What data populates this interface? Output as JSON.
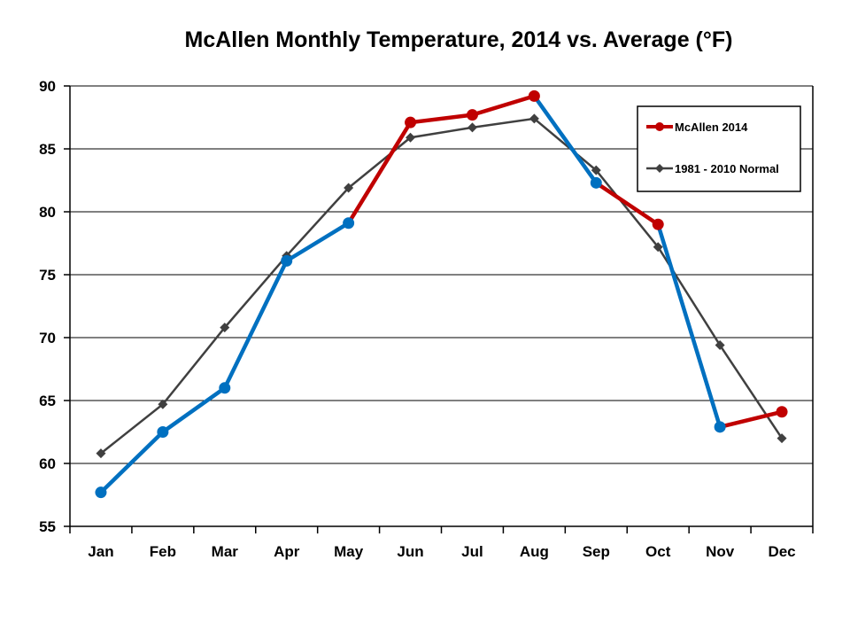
{
  "chart_data": {
    "type": "line",
    "title": "McAllen Monthly Temperature, 2014 vs. Average (°F)",
    "xlabel": "",
    "ylabel": "",
    "categories": [
      "Jan",
      "Feb",
      "Mar",
      "Apr",
      "May",
      "Jun",
      "Jul",
      "Aug",
      "Sep",
      "Oct",
      "Nov",
      "Dec"
    ],
    "ylim": [
      55,
      90
    ],
    "yticks": [
      55,
      60,
      65,
      70,
      75,
      80,
      85,
      90
    ],
    "grid": true,
    "legend_position": "top-right",
    "series": [
      {
        "name": "McAllen 2014",
        "values": [
          57.7,
          62.5,
          66.0,
          76.1,
          79.1,
          87.1,
          87.7,
          89.2,
          82.3,
          79.0,
          62.9,
          64.1
        ],
        "color": "#c00000",
        "below_normal_color": "#0070c0",
        "marker": "circle"
      },
      {
        "name": "1981 - 2010 Normal",
        "values": [
          60.8,
          64.7,
          70.8,
          76.5,
          81.9,
          85.9,
          86.7,
          87.4,
          83.3,
          77.2,
          69.4,
          62.0
        ],
        "color": "#404040",
        "marker": "diamond"
      }
    ]
  }
}
